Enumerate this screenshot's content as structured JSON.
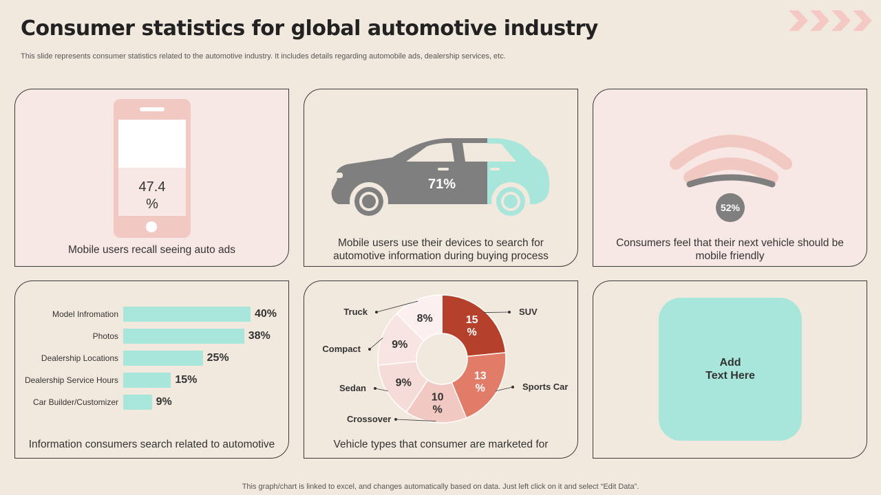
{
  "header": {
    "title": "Consumer statistics for global automotive industry",
    "subtitle": "This slide represents consumer statistics related to the automotive industry. It includes details regarding automobile ads, dealership services, etc."
  },
  "cards": {
    "phone": {
      "value_line1": "47.4",
      "value_line2": "%",
      "caption": "Mobile users recall seeing auto ads"
    },
    "car": {
      "value": "71%",
      "caption_line1": "Mobile users use their devices to search for",
      "caption_line2": "automotive information during buying process"
    },
    "wifi": {
      "value": "52%",
      "caption_line1": "Consumers feel that their next vehicle should be",
      "caption_line2": "mobile friendly"
    },
    "bars": {
      "caption": "Information  consumers  search related to automotive"
    },
    "donut": {
      "caption": "Vehicle types that consumer are marketed for"
    },
    "placeholder": {
      "line1": "Add",
      "line2": "Text Here"
    }
  },
  "colors": {
    "teal": "#a8e5da",
    "pink": "#f2c8c2",
    "gray": "#7f7f7f",
    "suv": "#b5402c",
    "sports_car": "#e07c68"
  },
  "chart_data": [
    {
      "type": "bar",
      "orientation": "horizontal",
      "categories": [
        "Model Infromation",
        "Photos",
        "Dealership Locations",
        "Dealership Service Hours",
        "Car Builder/Customizer"
      ],
      "values": [
        40,
        38,
        25,
        15,
        9
      ],
      "value_labels": [
        "40%",
        "38%",
        "25%",
        "15%",
        "9%"
      ],
      "xlim": [
        0,
        40
      ]
    },
    {
      "type": "pie",
      "donut": true,
      "categories": [
        "SUV",
        "Sports Car",
        "Crossover",
        "Sedan",
        "Compact",
        "Truck"
      ],
      "values": [
        15,
        13,
        10,
        9,
        9,
        8
      ],
      "value_labels": [
        "15 %",
        "13 %",
        "10 %",
        "9%",
        "9%",
        "8%"
      ],
      "colors": [
        "#b5402c",
        "#e07c68",
        "#f2c8c2",
        "#f6dcd9",
        "#f8e4e2",
        "#fbf0ee"
      ]
    }
  ],
  "footer": "This graph/chart is linked to excel,  and changes automatically based on data. Just left click on it and select “Edit Data”."
}
